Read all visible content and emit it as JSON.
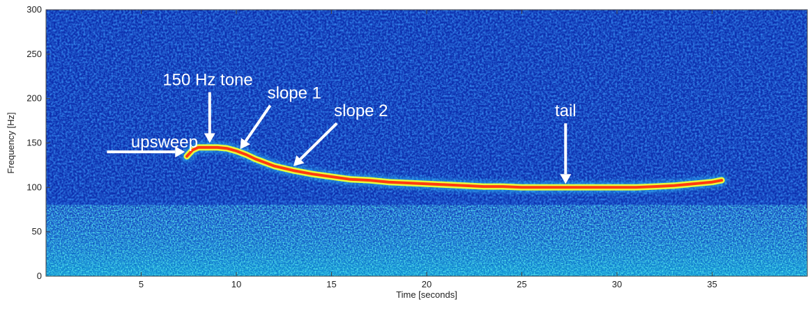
{
  "chart_data": {
    "type": "heatmap",
    "title": "",
    "xlabel": "Time [seconds]",
    "ylabel": "Frequency [Hz]",
    "xlim": [
      0,
      40
    ],
    "ylim": [
      0,
      300
    ],
    "x_ticks": [
      5,
      10,
      15,
      20,
      25,
      30,
      35
    ],
    "y_ticks": [
      0,
      50,
      100,
      150,
      200,
      250,
      300
    ],
    "grid": false,
    "colormap": [
      "#00008f",
      "#0000ff",
      "#0080ff",
      "#00ffff",
      "#80ff80",
      "#ffff00",
      "#ff8000",
      "#ff0000",
      "#800000"
    ],
    "background_color": "#0d2fae",
    "series": [
      {
        "x": [
          7.4,
          7.7,
          8.0,
          8.5,
          9.0,
          9.5,
          10.0,
          10.5,
          11.0,
          12.0,
          13.0,
          14.0,
          15.0,
          16.0,
          17.0,
          18.0,
          19.0,
          20.0,
          21.0,
          22.0,
          23.0,
          24.0,
          25.0,
          26.0,
          27.0,
          28.0,
          29.0,
          30.0,
          31.0,
          32.0,
          33.0,
          34.0,
          35.0,
          35.5
        ],
        "y": [
          135,
          142,
          145,
          145,
          145,
          144,
          141,
          137,
          132,
          124,
          119,
          115,
          112,
          109,
          108,
          106,
          105,
          104,
          103,
          102,
          101,
          101,
          100,
          100,
          100,
          100,
          100,
          100,
          100,
          101,
          102,
          104,
          106,
          108
        ]
      }
    ],
    "annotations": [
      {
        "text": "upsweep",
        "x": 3.0,
        "y": 148,
        "arrow_x": 7.3,
        "arrow_y": 140
      },
      {
        "text": "150 Hz tone",
        "x": 8.5,
        "y": 215,
        "arrow_x": 8.6,
        "arrow_y": 150
      },
      {
        "text": "slope 1",
        "x": 12.0,
        "y": 200,
        "arrow_x": 10.2,
        "arrow_y": 143
      },
      {
        "text": "slope 2",
        "x": 15.5,
        "y": 180,
        "arrow_x": 13.0,
        "arrow_y": 124
      },
      {
        "text": "tail",
        "x": 27.3,
        "y": 180,
        "arrow_x": 27.3,
        "arrow_y": 104
      }
    ]
  }
}
